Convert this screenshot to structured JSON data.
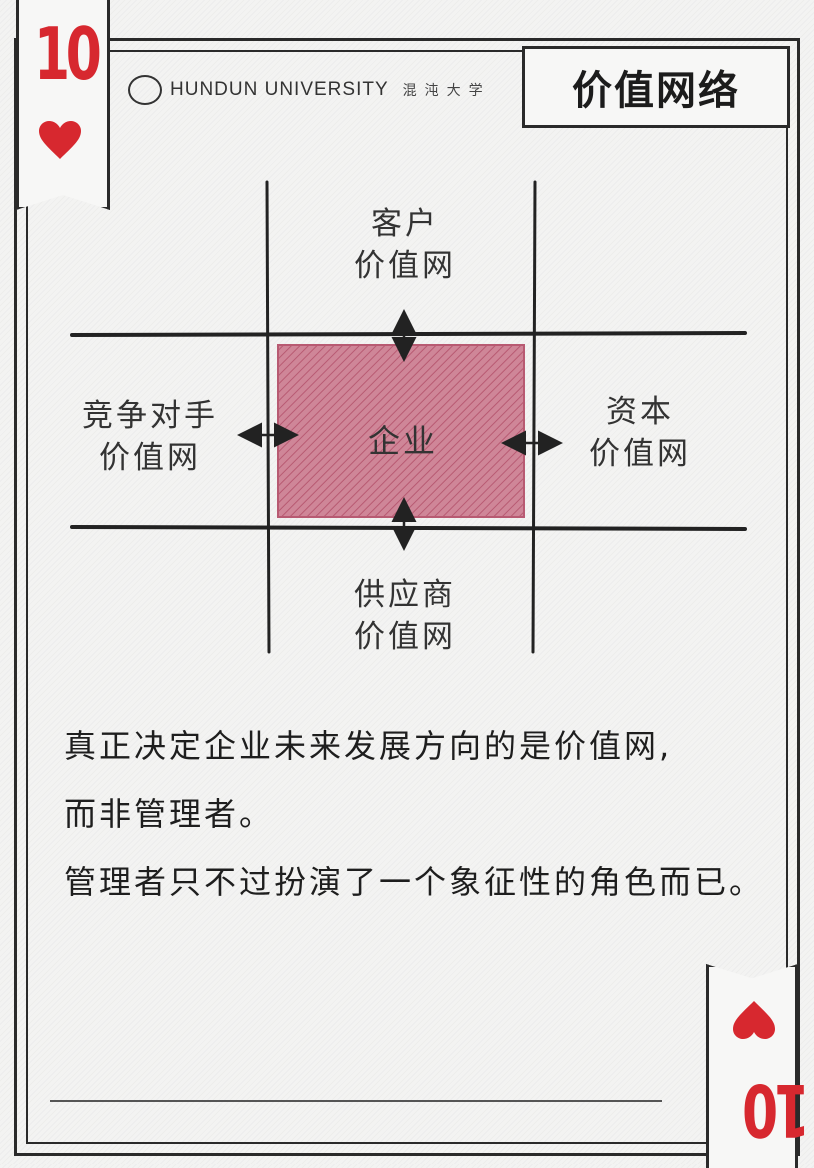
{
  "card": {
    "rank": "10",
    "rank_inverted": "10",
    "suit_icon": "heart-icon",
    "suit_color": "#d7282f"
  },
  "header": {
    "brand_en": "HUNDUN UNIVERSITY",
    "brand_cn": "混沌大学",
    "title": "价值网络"
  },
  "diagram": {
    "center": "企业",
    "top": [
      "客户",
      "价值网"
    ],
    "left": [
      "竞争对手",
      "价值网"
    ],
    "right": [
      "资本",
      "价值网"
    ],
    "bottom": [
      "供应商",
      "价值网"
    ],
    "center_fill": "#c9768a"
  },
  "body": {
    "lines": [
      "真正决定企业未来发展方向的是价值网,",
      "而非管理者。",
      "管理者只不过扮演了一个象征性的角色而已。"
    ]
  }
}
